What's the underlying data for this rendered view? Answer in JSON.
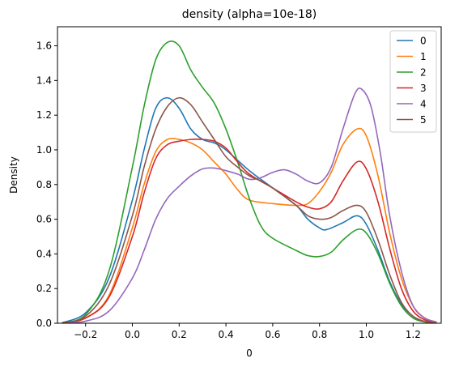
{
  "chart_data": {
    "type": "line",
    "title": "density (alpha=10e-18)",
    "xlabel": "0",
    "ylabel": "Density",
    "xlim": [
      -0.32,
      1.32
    ],
    "ylim": [
      0,
      1.71
    ],
    "xticks": [
      -0.2,
      0.0,
      0.2,
      0.4,
      0.6,
      0.8,
      1.0,
      1.2
    ],
    "xtick_labels": [
      "−0.2",
      "0.0",
      "0.2",
      "0.4",
      "0.6",
      "0.8",
      "1.0",
      "1.2"
    ],
    "yticks": [
      0.0,
      0.2,
      0.4,
      0.6,
      0.8,
      1.0,
      1.2,
      1.4,
      1.6
    ],
    "ytick_labels": [
      "0.0",
      "0.2",
      "0.4",
      "0.6",
      "0.8",
      "1.0",
      "1.2",
      "1.4",
      "1.6"
    ],
    "grid": false,
    "legend_position": "top-right",
    "series": [
      {
        "name": "0",
        "color": "#1f77b4",
        "points": [
          [
            -0.3,
            0.003
          ],
          [
            -0.2,
            0.06
          ],
          [
            -0.1,
            0.26
          ],
          [
            0.0,
            0.71
          ],
          [
            0.05,
            1.0
          ],
          [
            0.1,
            1.24
          ],
          [
            0.15,
            1.3
          ],
          [
            0.2,
            1.24
          ],
          [
            0.25,
            1.12
          ],
          [
            0.3,
            1.06
          ],
          [
            0.35,
            1.04
          ],
          [
            0.4,
            1.0
          ],
          [
            0.5,
            0.88
          ],
          [
            0.6,
            0.78
          ],
          [
            0.7,
            0.68
          ],
          [
            0.75,
            0.6
          ],
          [
            0.8,
            0.55
          ],
          [
            0.83,
            0.54
          ],
          [
            0.9,
            0.58
          ],
          [
            0.96,
            0.62
          ],
          [
            1.0,
            0.57
          ],
          [
            1.05,
            0.42
          ],
          [
            1.1,
            0.24
          ],
          [
            1.15,
            0.11
          ],
          [
            1.2,
            0.04
          ],
          [
            1.25,
            0.01
          ],
          [
            1.3,
            0.002
          ]
        ]
      },
      {
        "name": "1",
        "color": "#ff7f0e",
        "points": [
          [
            -0.3,
            0.002
          ],
          [
            -0.2,
            0.03
          ],
          [
            -0.1,
            0.16
          ],
          [
            0.0,
            0.55
          ],
          [
            0.05,
            0.8
          ],
          [
            0.1,
            0.99
          ],
          [
            0.15,
            1.06
          ],
          [
            0.2,
            1.06
          ],
          [
            0.25,
            1.04
          ],
          [
            0.3,
            1.0
          ],
          [
            0.35,
            0.93
          ],
          [
            0.4,
            0.86
          ],
          [
            0.45,
            0.77
          ],
          [
            0.5,
            0.71
          ],
          [
            0.6,
            0.69
          ],
          [
            0.7,
            0.68
          ],
          [
            0.75,
            0.69
          ],
          [
            0.8,
            0.76
          ],
          [
            0.85,
            0.87
          ],
          [
            0.9,
            1.03
          ],
          [
            0.96,
            1.12
          ],
          [
            1.0,
            1.08
          ],
          [
            1.05,
            0.85
          ],
          [
            1.1,
            0.52
          ],
          [
            1.15,
            0.26
          ],
          [
            1.2,
            0.1
          ],
          [
            1.25,
            0.03
          ],
          [
            1.3,
            0.008
          ]
        ]
      },
      {
        "name": "2",
        "color": "#2ca02c",
        "points": [
          [
            -0.3,
            0.003
          ],
          [
            -0.2,
            0.05
          ],
          [
            -0.1,
            0.3
          ],
          [
            0.0,
            0.9
          ],
          [
            0.05,
            1.25
          ],
          [
            0.1,
            1.52
          ],
          [
            0.15,
            1.62
          ],
          [
            0.2,
            1.6
          ],
          [
            0.25,
            1.46
          ],
          [
            0.3,
            1.36
          ],
          [
            0.35,
            1.27
          ],
          [
            0.4,
            1.12
          ],
          [
            0.45,
            0.93
          ],
          [
            0.5,
            0.72
          ],
          [
            0.55,
            0.56
          ],
          [
            0.6,
            0.49
          ],
          [
            0.7,
            0.42
          ],
          [
            0.75,
            0.39
          ],
          [
            0.8,
            0.385
          ],
          [
            0.85,
            0.41
          ],
          [
            0.9,
            0.48
          ],
          [
            0.96,
            0.54
          ],
          [
            1.0,
            0.52
          ],
          [
            1.05,
            0.4
          ],
          [
            1.1,
            0.23
          ],
          [
            1.15,
            0.1
          ],
          [
            1.2,
            0.03
          ],
          [
            1.25,
            0.008
          ],
          [
            1.3,
            0.002
          ]
        ]
      },
      {
        "name": "3",
        "color": "#d62728",
        "points": [
          [
            -0.3,
            0.002
          ],
          [
            -0.2,
            0.03
          ],
          [
            -0.1,
            0.15
          ],
          [
            0.0,
            0.5
          ],
          [
            0.05,
            0.75
          ],
          [
            0.1,
            0.95
          ],
          [
            0.15,
            1.03
          ],
          [
            0.2,
            1.05
          ],
          [
            0.25,
            1.06
          ],
          [
            0.3,
            1.06
          ],
          [
            0.35,
            1.05
          ],
          [
            0.4,
            1.01
          ],
          [
            0.45,
            0.93
          ],
          [
            0.5,
            0.86
          ],
          [
            0.6,
            0.78
          ],
          [
            0.7,
            0.7
          ],
          [
            0.75,
            0.67
          ],
          [
            0.8,
            0.66
          ],
          [
            0.85,
            0.7
          ],
          [
            0.9,
            0.82
          ],
          [
            0.96,
            0.93
          ],
          [
            1.0,
            0.89
          ],
          [
            1.05,
            0.7
          ],
          [
            1.1,
            0.43
          ],
          [
            1.15,
            0.2
          ],
          [
            1.2,
            0.07
          ],
          [
            1.25,
            0.02
          ],
          [
            1.3,
            0.004
          ]
        ]
      },
      {
        "name": "4",
        "color": "#9467bd",
        "points": [
          [
            -0.3,
            0.001
          ],
          [
            -0.2,
            0.012
          ],
          [
            -0.1,
            0.07
          ],
          [
            0.0,
            0.26
          ],
          [
            0.05,
            0.42
          ],
          [
            0.1,
            0.6
          ],
          [
            0.15,
            0.72
          ],
          [
            0.2,
            0.79
          ],
          [
            0.25,
            0.85
          ],
          [
            0.3,
            0.89
          ],
          [
            0.35,
            0.895
          ],
          [
            0.4,
            0.88
          ],
          [
            0.45,
            0.86
          ],
          [
            0.5,
            0.83
          ],
          [
            0.55,
            0.84
          ],
          [
            0.6,
            0.87
          ],
          [
            0.65,
            0.885
          ],
          [
            0.7,
            0.86
          ],
          [
            0.75,
            0.82
          ],
          [
            0.8,
            0.81
          ],
          [
            0.85,
            0.9
          ],
          [
            0.9,
            1.12
          ],
          [
            0.95,
            1.32
          ],
          [
            0.98,
            1.35
          ],
          [
            1.02,
            1.25
          ],
          [
            1.06,
            0.98
          ],
          [
            1.1,
            0.62
          ],
          [
            1.15,
            0.3
          ],
          [
            1.2,
            0.1
          ],
          [
            1.25,
            0.03
          ],
          [
            1.3,
            0.006
          ]
        ]
      },
      {
        "name": "5",
        "color": "#8c564b",
        "points": [
          [
            -0.3,
            0.002
          ],
          [
            -0.2,
            0.04
          ],
          [
            -0.1,
            0.22
          ],
          [
            0.0,
            0.62
          ],
          [
            0.05,
            0.9
          ],
          [
            0.1,
            1.12
          ],
          [
            0.15,
            1.25
          ],
          [
            0.2,
            1.3
          ],
          [
            0.25,
            1.26
          ],
          [
            0.3,
            1.16
          ],
          [
            0.35,
            1.06
          ],
          [
            0.4,
            0.96
          ],
          [
            0.45,
            0.9
          ],
          [
            0.5,
            0.85
          ],
          [
            0.55,
            0.82
          ],
          [
            0.6,
            0.78
          ],
          [
            0.7,
            0.68
          ],
          [
            0.75,
            0.62
          ],
          [
            0.8,
            0.6
          ],
          [
            0.85,
            0.61
          ],
          [
            0.9,
            0.65
          ],
          [
            0.96,
            0.68
          ],
          [
            1.0,
            0.64
          ],
          [
            1.05,
            0.48
          ],
          [
            1.1,
            0.28
          ],
          [
            1.15,
            0.12
          ],
          [
            1.2,
            0.04
          ],
          [
            1.25,
            0.01
          ],
          [
            1.3,
            0.002
          ]
        ]
      }
    ]
  }
}
